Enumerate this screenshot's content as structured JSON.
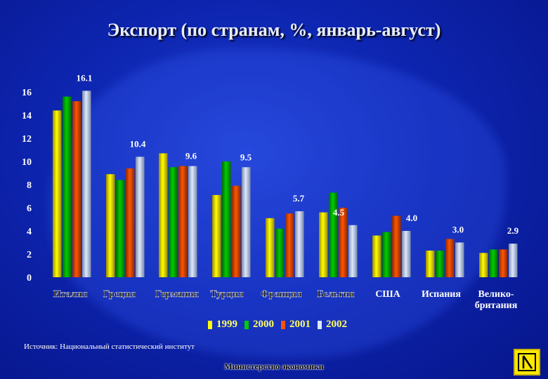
{
  "title": "Экспорт (по странам, %, январь-август)",
  "source": "Источник: Национальный статистический институт",
  "footer": "Министерство экономики",
  "colors": {
    "1999": "#ffff00",
    "2000": "#00cc00",
    "2001": "#ff5500",
    "2002": "#dde8ff"
  },
  "chart_data": {
    "type": "bar",
    "title": "Экспорт (по странам, %, январь-август)",
    "ylim": [
      0,
      16
    ],
    "yticks": [
      0,
      2,
      4,
      6,
      8,
      10,
      12,
      14,
      16
    ],
    "categories": [
      "Италия",
      "Греция",
      "Германия",
      "Турция",
      "Франция",
      "Бельгия",
      "США",
      "Испания",
      "Велико-британия"
    ],
    "category_lines": [
      [
        "Италия"
      ],
      [
        "Греция"
      ],
      [
        "Германия"
      ],
      [
        "Турция"
      ],
      [
        "Франция"
      ],
      [
        "Бельгия"
      ],
      [
        "США"
      ],
      [
        "Испания"
      ],
      [
        "Велико-",
        "британия"
      ]
    ],
    "series": [
      {
        "name": "1999",
        "values": [
          14.4,
          8.9,
          10.7,
          7.1,
          5.1,
          5.6,
          3.6,
          2.3,
          2.1
        ]
      },
      {
        "name": "2000",
        "values": [
          15.6,
          8.4,
          9.5,
          10.0,
          4.2,
          7.3,
          3.9,
          2.3,
          2.4
        ]
      },
      {
        "name": "2001",
        "values": [
          15.2,
          9.4,
          9.6,
          7.9,
          5.5,
          6.0,
          5.3,
          3.3,
          2.4
        ]
      },
      {
        "name": "2002",
        "values": [
          16.1,
          10.4,
          9.6,
          9.5,
          5.7,
          4.5,
          4.0,
          3.0,
          2.9
        ]
      }
    ],
    "data_labels": [
      "16.1",
      "10.4",
      "9.6",
      "9.5",
      "5.7",
      "4.5",
      "4.0",
      "3.0",
      "2.9"
    ],
    "legend": [
      "1999",
      "2000",
      "2001",
      "2002"
    ],
    "legend_position": "bottom",
    "grid": false
  }
}
